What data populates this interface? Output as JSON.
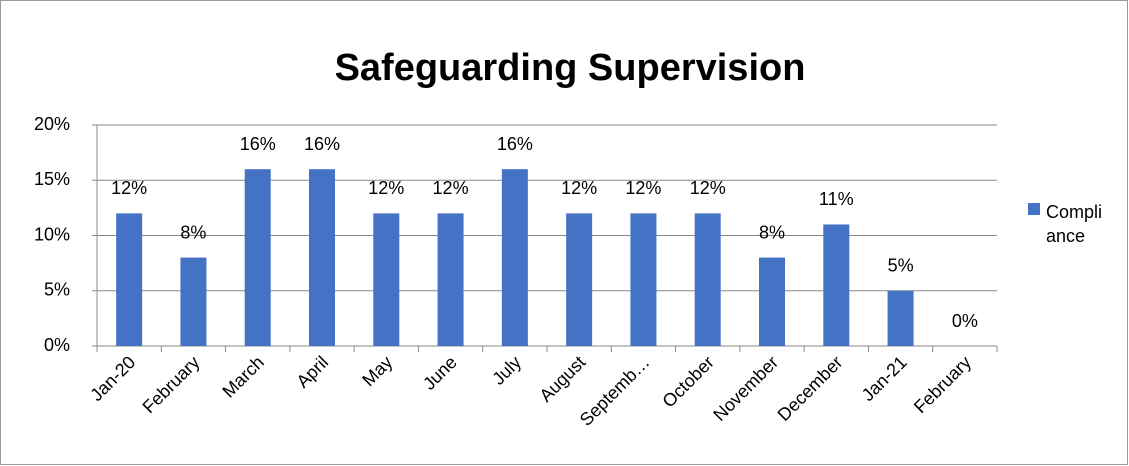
{
  "chart_data": {
    "type": "bar",
    "title": "Safeguarding Supervision",
    "categories": [
      "Jan-20",
      "February",
      "March",
      "April",
      "May",
      "June",
      "July",
      "August",
      "Septemb…",
      "October",
      "November",
      "December",
      "Jan-21",
      "February"
    ],
    "series": [
      {
        "name": "Compliance",
        "color": "#4472c4",
        "values": [
          12,
          8,
          16,
          16,
          12,
          12,
          16,
          12,
          12,
          12,
          8,
          11,
          5,
          0
        ],
        "value_labels": [
          "12%",
          "8%",
          "16%",
          "16%",
          "12%",
          "12%",
          "16%",
          "12%",
          "12%",
          "12%",
          "8%",
          "11%",
          "5%",
          "0%"
        ]
      }
    ],
    "ylim": [
      0,
      20
    ],
    "yticks": [
      {
        "value": 0,
        "label": "0%"
      },
      {
        "value": 5,
        "label": "5%"
      },
      {
        "value": 10,
        "label": "10%"
      },
      {
        "value": 15,
        "label": "15%"
      },
      {
        "value": 20,
        "label": "20%"
      }
    ],
    "grid": true,
    "legend": "right"
  }
}
